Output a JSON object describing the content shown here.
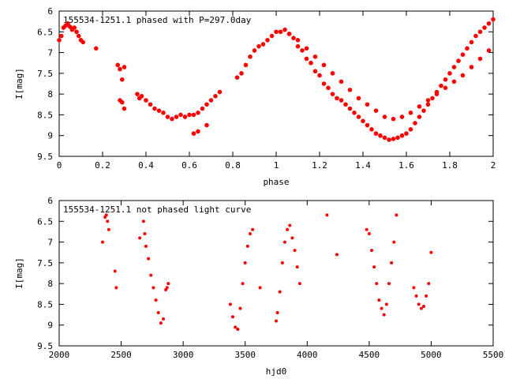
{
  "chart_data": [
    {
      "type": "scatter",
      "title": "155534-1251.1 phased with P=297.0day",
      "xlabel": "phase",
      "ylabel": "I[mag]",
      "xlim": [
        0,
        2
      ],
      "ylim": [
        6,
        9.5
      ],
      "y_inverted": true,
      "xticks": [
        "0",
        "0.2",
        "0.4",
        "0.6",
        "0.8",
        "1",
        "1.2",
        "1.4",
        "1.6",
        "1.8",
        "2"
      ],
      "yticks": [
        "6",
        "6.5",
        "7",
        "7.5",
        "8",
        "8.5",
        "9",
        "9.5"
      ],
      "color": "#ff0000",
      "series": [
        {
          "x": [
            0.0,
            0.01,
            0.02,
            0.03,
            0.04,
            0.05,
            0.06,
            0.07,
            0.08,
            0.09,
            0.1,
            0.11,
            0.17,
            0.27,
            0.28,
            0.29,
            0.3,
            0.28,
            0.29,
            0.3,
            0.36,
            0.37,
            0.38,
            0.4,
            0.42,
            0.44,
            0.46,
            0.48,
            0.5,
            0.52,
            0.54,
            0.56,
            0.58,
            0.6,
            0.62,
            0.64,
            0.66,
            0.68,
            0.7,
            0.72,
            0.74,
            0.62,
            0.64,
            0.68
          ],
          "y": [
            6.7,
            6.6,
            6.4,
            6.35,
            6.3,
            6.38,
            6.45,
            6.4,
            6.5,
            6.6,
            6.7,
            6.75,
            6.9,
            7.3,
            7.4,
            7.65,
            7.35,
            8.15,
            8.2,
            8.35,
            8.0,
            8.1,
            8.05,
            8.15,
            8.25,
            8.35,
            8.4,
            8.45,
            8.55,
            8.6,
            8.55,
            8.5,
            8.55,
            8.5,
            8.5,
            8.45,
            8.35,
            8.25,
            8.15,
            8.05,
            7.95,
            8.95,
            8.9,
            8.75
          ]
        },
        {
          "x": [
            0.82,
            0.84,
            0.86,
            0.88,
            0.9,
            0.92,
            0.94,
            0.96,
            0.98,
            1.0,
            1.02,
            1.04,
            1.06,
            1.08,
            1.1,
            1.12,
            1.14,
            1.16,
            1.18,
            1.2,
            1.22,
            1.24,
            1.26,
            1.28,
            1.3,
            1.32,
            1.34,
            1.36,
            1.38,
            1.4,
            1.42,
            1.44,
            1.46,
            1.48,
            1.5,
            1.52,
            1.54,
            1.56,
            1.58,
            1.6,
            1.62,
            1.64,
            1.66,
            1.68,
            1.7,
            1.72,
            1.74,
            1.76,
            1.78,
            1.8,
            1.82,
            1.84,
            1.86,
            1.88,
            1.9,
            1.92,
            1.94,
            1.96,
            1.98,
            2.0
          ],
          "y": [
            7.6,
            7.5,
            7.3,
            7.1,
            6.95,
            6.85,
            6.8,
            6.7,
            6.6,
            6.5,
            6.5,
            6.45,
            6.55,
            6.65,
            6.85,
            6.95,
            7.15,
            7.25,
            7.45,
            7.55,
            7.75,
            7.85,
            8.0,
            8.1,
            8.15,
            8.25,
            8.35,
            8.45,
            8.55,
            8.65,
            8.75,
            8.85,
            8.95,
            9.0,
            9.05,
            9.1,
            9.08,
            9.05,
            9.0,
            8.95,
            8.85,
            8.7,
            8.55,
            8.4,
            8.25,
            8.1,
            7.95,
            7.8,
            7.65,
            7.5,
            7.35,
            7.2,
            7.05,
            6.9,
            6.75,
            6.6,
            6.5,
            6.4,
            6.3,
            6.2
          ]
        },
        {
          "x": [
            1.06,
            1.1,
            1.14,
            1.18,
            1.22,
            1.26,
            1.3,
            1.34,
            1.38,
            1.42,
            1.46,
            1.5,
            1.54,
            1.58,
            1.62,
            1.66,
            1.7,
            1.74,
            1.78,
            1.82,
            1.86,
            1.9,
            1.94,
            1.98
          ],
          "y": [
            6.55,
            6.7,
            6.9,
            7.1,
            7.3,
            7.5,
            7.7,
            7.9,
            8.1,
            8.25,
            8.4,
            8.55,
            8.6,
            8.55,
            8.45,
            8.3,
            8.15,
            8.0,
            7.85,
            7.7,
            7.55,
            7.35,
            7.15,
            6.95
          ]
        }
      ]
    },
    {
      "type": "scatter",
      "title": "155534-1251.1 not phased light curve",
      "xlabel": "hjd0",
      "ylabel": "I[mag]",
      "xlim": [
        2000,
        5500
      ],
      "ylim": [
        6,
        9.5
      ],
      "y_inverted": true,
      "xticks": [
        "2000",
        "2500",
        "3000",
        "3500",
        "4000",
        "4500",
        "5000",
        "5500"
      ],
      "yticks": [
        "6",
        "6.5",
        "7",
        "7.5",
        "8",
        "8.5",
        "9",
        "9.5"
      ],
      "color": "#ff0000",
      "series": [
        {
          "x": [
            2350,
            2370,
            2380,
            2390,
            2400,
            2450,
            2460,
            2650,
            2680,
            2690,
            2700,
            2720,
            2740,
            2760,
            2780,
            2800,
            2820,
            2840,
            2860,
            2870,
            2880,
            3380,
            3400,
            3420,
            3440,
            3460,
            3480,
            3500,
            3520,
            3540,
            3560,
            3620,
            3750,
            3760,
            3780,
            3800,
            3820,
            3840,
            3860,
            3880,
            3900,
            3920,
            3940,
            4160,
            4240,
            4480,
            4500,
            4520,
            4540,
            4560,
            4580,
            4600,
            4620,
            4640,
            4660,
            4680,
            4700,
            4720,
            4860,
            4880,
            4900,
            4920,
            4940,
            4960,
            4980,
            5000
          ],
          "y": [
            7.0,
            6.4,
            6.35,
            6.5,
            6.7,
            7.7,
            8.1,
            6.9,
            6.5,
            6.8,
            7.1,
            7.4,
            7.8,
            8.1,
            8.4,
            8.7,
            8.95,
            8.85,
            8.15,
            8.1,
            8.0,
            8.5,
            8.8,
            9.05,
            9.1,
            8.6,
            8.0,
            7.5,
            7.1,
            6.8,
            6.7,
            8.1,
            8.9,
            8.7,
            8.2,
            7.5,
            7.0,
            6.7,
            6.6,
            6.9,
            7.2,
            7.6,
            8.0,
            6.35,
            7.3,
            6.7,
            6.8,
            7.2,
            7.6,
            8.0,
            8.4,
            8.6,
            8.75,
            8.5,
            8.0,
            7.5,
            7.0,
            6.35,
            8.1,
            8.3,
            8.5,
            8.6,
            8.55,
            8.3,
            8.0,
            7.25
          ]
        }
      ]
    }
  ]
}
